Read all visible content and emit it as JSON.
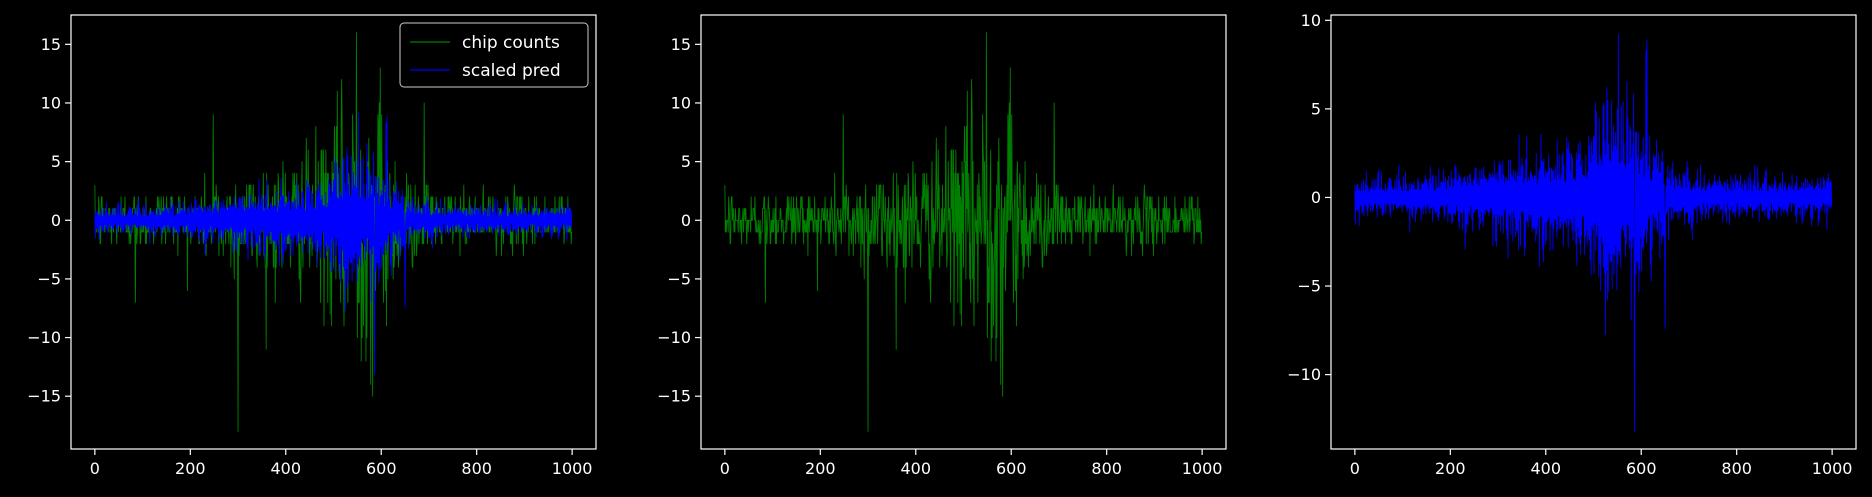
{
  "chart_data": [
    {
      "type": "line",
      "title": "",
      "xlabel": "",
      "ylabel": "",
      "xlim": [
        -50,
        1050
      ],
      "ylim": [
        -19.5,
        17.5
      ],
      "xticks": [
        0,
        200,
        400,
        600,
        800,
        1000
      ],
      "xtick_labels": [
        "0",
        "200",
        "400",
        "600",
        "800",
        "1000"
      ],
      "yticks": [
        -15,
        -10,
        -5,
        0,
        5,
        10,
        15
      ],
      "ytick_labels": [
        "−15",
        "−10",
        "−5",
        "0",
        "5",
        "10",
        "15"
      ],
      "grid": false,
      "legend": "top-right",
      "x_range": [
        0,
        999
      ],
      "series": [
        {
          "name": "chip counts",
          "color": "#008000",
          "kind": "counts",
          "min": -18,
          "max": 16
        },
        {
          "name": "scaled pred",
          "color": "#0000ff",
          "kind": "pred",
          "min": -13.2,
          "max": 9.2
        }
      ]
    },
    {
      "type": "line",
      "title": "",
      "xlabel": "",
      "ylabel": "",
      "xlim": [
        -50,
        1050
      ],
      "ylim": [
        -19.5,
        17.5
      ],
      "xticks": [
        0,
        200,
        400,
        600,
        800,
        1000
      ],
      "xtick_labels": [
        "0",
        "200",
        "400",
        "600",
        "800",
        "1000"
      ],
      "yticks": [
        -15,
        -10,
        -5,
        0,
        5,
        10,
        15
      ],
      "ytick_labels": [
        "−15",
        "−10",
        "−5",
        "0",
        "5",
        "10",
        "15"
      ],
      "grid": false,
      "x_range": [
        0,
        999
      ],
      "series": [
        {
          "color": "#008000",
          "kind": "counts",
          "min": -18,
          "max": 16
        }
      ]
    },
    {
      "type": "line",
      "title": "",
      "xlabel": "",
      "ylabel": "",
      "xlim": [
        -50,
        1050
      ],
      "ylim": [
        -14.2,
        10.3
      ],
      "xticks": [
        0,
        200,
        400,
        600,
        800,
        1000
      ],
      "xtick_labels": [
        "0",
        "200",
        "400",
        "600",
        "800",
        "1000"
      ],
      "yticks": [
        -10,
        -5,
        0,
        5,
        10
      ],
      "ytick_labels": [
        "−10",
        "−5",
        "0",
        "5",
        "10"
      ],
      "grid": false,
      "x_range": [
        0,
        999
      ],
      "series": [
        {
          "color": "#0000ff",
          "kind": "pred",
          "min": -13.2,
          "max": 9.2
        }
      ]
    }
  ]
}
